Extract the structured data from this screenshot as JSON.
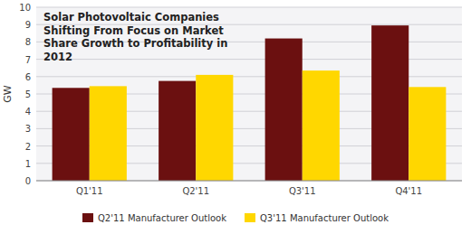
{
  "chart_data": {
    "type": "bar",
    "title": "Solar Photovoltaic Companies\nShifting From Focus on Market\nShare Growth to Profitability in\n2012",
    "ylabel": "GW",
    "categories": [
      "Q1'11",
      "Q2'11",
      "Q3'11",
      "Q4'11"
    ],
    "series": [
      {
        "name": "Q2'11 Manufacturer Outlook",
        "color": "#6B1010",
        "values": [
          5.35,
          5.75,
          8.2,
          8.95
        ]
      },
      {
        "name": "Q3'11 Manufacturer Outlook",
        "color": "#FFD700",
        "values": [
          5.45,
          6.1,
          6.35,
          5.4
        ]
      }
    ],
    "ylim": [
      0,
      10
    ],
    "yticks": [
      0,
      1,
      2,
      3,
      4,
      5,
      6,
      7,
      8,
      9,
      10
    ],
    "grid": true,
    "legend": "bottom"
  }
}
